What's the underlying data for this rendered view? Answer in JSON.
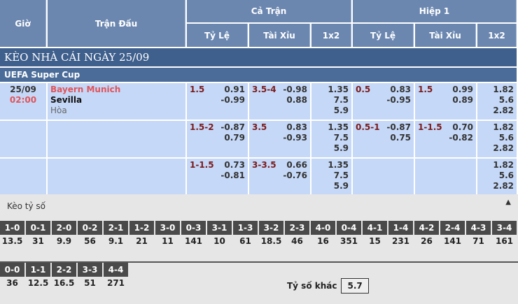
{
  "header": {
    "gio": "Giờ",
    "tran_dau": "Trận Đấu",
    "ca_tran": "Cả Trận",
    "hiep1": "Hiệp 1",
    "ty_le": "Tỷ Lệ",
    "tai_xiu": "Tài Xỉu",
    "x12": "1x2"
  },
  "title": "KÈO NHÀ CÁI NGÀY 25/09",
  "league": "UEFA Super Cup",
  "match": {
    "date": "25/09",
    "time": "02:00",
    "home": "Bayern Munich",
    "away": "Sevilla",
    "draw": "Hòa"
  },
  "rows": [
    {
      "ft_hdp": "1.5",
      "ft_hdp_odds": [
        "0.91",
        "-0.99"
      ],
      "ft_ou": "3.5-4",
      "ft_ou_odds": [
        "-0.98",
        "0.88"
      ],
      "ft_1x2": [
        "1.35",
        "7.5",
        "5.9"
      ],
      "h1_hdp": "0.5",
      "h1_hdp_odds": [
        "0.83",
        "-0.95"
      ],
      "h1_ou": "1.5",
      "h1_ou_odds": [
        "0.99",
        "0.89"
      ],
      "h1_1x2": [
        "1.82",
        "5.6",
        "2.82"
      ]
    },
    {
      "ft_hdp": "1.5-2",
      "ft_hdp_odds": [
        "-0.87",
        "0.79"
      ],
      "ft_ou": "3.5",
      "ft_ou_odds": [
        "0.83",
        "-0.93"
      ],
      "ft_1x2": [
        "1.35",
        "7.5",
        "5.9"
      ],
      "h1_hdp": "0.5-1",
      "h1_hdp_odds": [
        "-0.87",
        "0.75"
      ],
      "h1_ou": "1-1.5",
      "h1_ou_odds": [
        "0.70",
        "-0.82"
      ],
      "h1_1x2": [
        "1.82",
        "5.6",
        "2.82"
      ]
    },
    {
      "ft_hdp": "1-1.5",
      "ft_hdp_odds": [
        "0.73",
        "-0.81"
      ],
      "ft_ou": "3-3.5",
      "ft_ou_odds": [
        "0.66",
        "-0.76"
      ],
      "ft_1x2": [
        "1.35",
        "7.5",
        "5.9"
      ],
      "h1_hdp": "",
      "h1_hdp_odds": [
        "",
        ""
      ],
      "h1_ou": "",
      "h1_ou_odds": [
        "",
        ""
      ],
      "h1_1x2": [
        "1.82",
        "5.6",
        "2.82"
      ]
    }
  ],
  "correct_score": {
    "label": "Kèo tỷ số",
    "collapse_icon": "triangle-up-icon",
    "row1": [
      [
        "1-0",
        "13.5"
      ],
      [
        "0-1",
        "31"
      ],
      [
        "2-0",
        "9.9"
      ],
      [
        "0-2",
        "56"
      ],
      [
        "2-1",
        "9.1"
      ],
      [
        "1-2",
        "21"
      ],
      [
        "3-0",
        "11"
      ],
      [
        "0-3",
        "141"
      ],
      [
        "3-1",
        "10"
      ],
      [
        "1-3",
        "61"
      ],
      [
        "3-2",
        "18.5"
      ],
      [
        "2-3",
        "46"
      ],
      [
        "4-0",
        "16"
      ],
      [
        "0-4",
        "351"
      ],
      [
        "4-1",
        "15"
      ],
      [
        "1-4",
        "231"
      ],
      [
        "4-2",
        "26"
      ],
      [
        "2-4",
        "141"
      ],
      [
        "4-3",
        "71"
      ],
      [
        "3-4",
        "161"
      ]
    ],
    "row2": [
      [
        "0-0",
        "36"
      ],
      [
        "1-1",
        "12.5"
      ],
      [
        "2-2",
        "16.5"
      ],
      [
        "3-3",
        "51"
      ],
      [
        "4-4",
        "271"
      ]
    ],
    "other_label": "Tỷ số khác",
    "other_value": "5.7"
  }
}
